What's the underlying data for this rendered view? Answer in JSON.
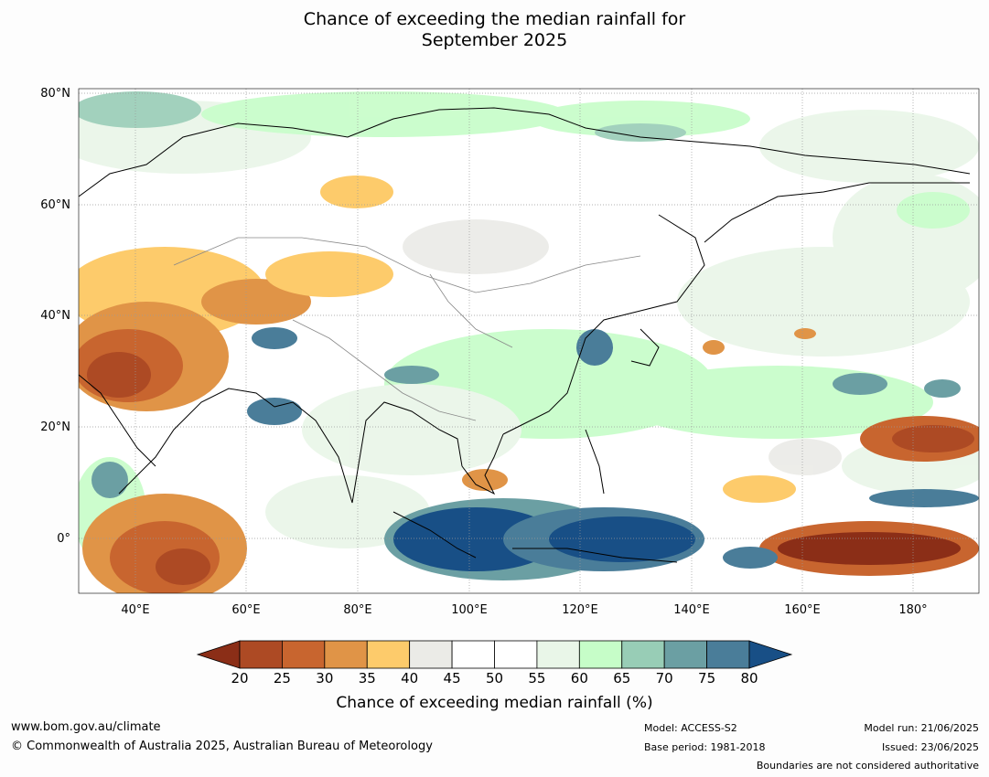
{
  "title_line1": "Chance of exceeding the median rainfall for",
  "title_line2": "September 2025",
  "lat_labels": [
    "80°N",
    "60°N",
    "40°N",
    "20°N",
    "0°"
  ],
  "lon_labels": [
    "40°E",
    "60°E",
    "80°E",
    "100°E",
    "120°E",
    "140°E",
    "160°E",
    "180°"
  ],
  "colorbar": {
    "ticks": [
      "20",
      "25",
      "30",
      "35",
      "40",
      "45",
      "50",
      "55",
      "60",
      "65",
      "70",
      "75",
      "80"
    ],
    "colors": [
      "#8b2e17",
      "#ad4a24",
      "#c8652f",
      "#e09447",
      "#fdcb6b",
      "#ebebe7",
      "#ffffff",
      "#ffffff",
      "#e9f6e8",
      "#c6fdc8",
      "#98cdb6",
      "#6b9fa3",
      "#4a7d99",
      "#184f86"
    ],
    "label": "Chance of exceeding median rainfall (%)"
  },
  "footer": {
    "website": "www.bom.gov.au/climate",
    "copyright": "© Commonwealth of Australia 2025, Australian Bureau of Meteorology",
    "model": "Model: ACCESS-S2",
    "base_period": "Base period: 1981-2018",
    "model_run": "Model run: 21/06/2025",
    "issued": "Issued: 23/06/2025",
    "disclaimer": "Boundaries are not considered authoritative"
  }
}
